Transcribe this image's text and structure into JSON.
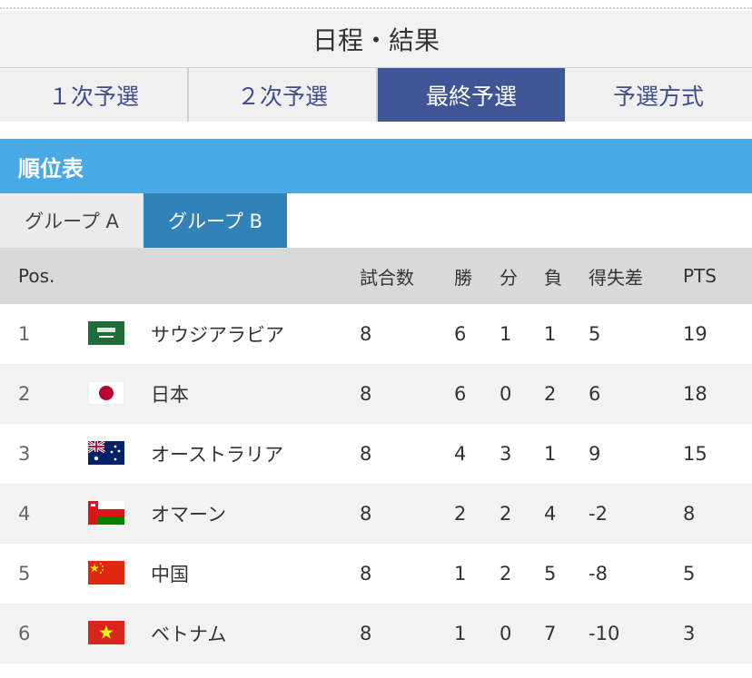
{
  "page_title": "日程・結果",
  "stage_tabs": [
    {
      "label": "１次予選",
      "active": false
    },
    {
      "label": "２次予選",
      "active": false
    },
    {
      "label": "最終予選",
      "active": true
    },
    {
      "label": "予選方式",
      "active": false
    }
  ],
  "section_title": "順位表",
  "group_tabs": [
    {
      "label": "グループ A",
      "active": false
    },
    {
      "label": "グループ B",
      "active": true
    }
  ],
  "table": {
    "headers": {
      "pos": "Pos.",
      "played": "試合数",
      "won": "勝",
      "drawn": "分",
      "lost": "負",
      "goal_diff": "得失差",
      "pts": "PTS"
    },
    "rows": [
      {
        "pos": "1",
        "flag": "saudi-arabia-flag",
        "team": "サウジアラビア",
        "played": "8",
        "won": "6",
        "drawn": "1",
        "lost": "1",
        "goal_diff": "5",
        "pts": "19"
      },
      {
        "pos": "2",
        "flag": "japan-flag",
        "team": "日本",
        "played": "8",
        "won": "6",
        "drawn": "0",
        "lost": "2",
        "goal_diff": "6",
        "pts": "18"
      },
      {
        "pos": "3",
        "flag": "australia-flag",
        "team": "オーストラリア",
        "played": "8",
        "won": "4",
        "drawn": "3",
        "lost": "1",
        "goal_diff": "9",
        "pts": "15"
      },
      {
        "pos": "4",
        "flag": "oman-flag",
        "team": "オマーン",
        "played": "8",
        "won": "2",
        "drawn": "2",
        "lost": "4",
        "goal_diff": "-2",
        "pts": "8"
      },
      {
        "pos": "5",
        "flag": "china-flag",
        "team": "中国",
        "played": "8",
        "won": "1",
        "drawn": "2",
        "lost": "5",
        "goal_diff": "-8",
        "pts": "5"
      },
      {
        "pos": "6",
        "flag": "vietnam-flag",
        "team": "ベトナム",
        "played": "8",
        "won": "1",
        "drawn": "0",
        "lost": "7",
        "goal_diff": "-10",
        "pts": "3"
      }
    ]
  },
  "colors": {
    "active_stage_tab": "#3f5595",
    "section_header": "#49a8e6",
    "active_group_tab": "#3182b9"
  }
}
